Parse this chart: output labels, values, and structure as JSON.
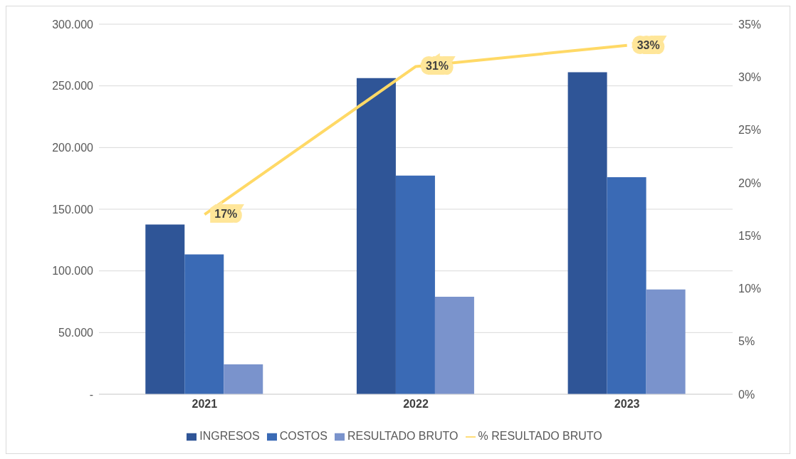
{
  "chart_data": {
    "type": "bar",
    "categories": [
      "2021",
      "2022",
      "2023"
    ],
    "series": [
      {
        "name": "INGRESOS",
        "color": "#2f5597",
        "values": [
          137600,
          256300,
          261000
        ]
      },
      {
        "name": "COSTOS",
        "color": "#3a6ab5",
        "values": [
          113400,
          177200,
          176000
        ]
      },
      {
        "name": "RESULTADO BRUTO",
        "color": "#7a93cc",
        "values": [
          24200,
          79100,
          85000
        ]
      },
      {
        "name": "% RESULTADO BRUTO",
        "type": "line",
        "axis": "y2",
        "color": "#ffd966",
        "values": [
          17,
          31,
          33
        ],
        "value_labels": [
          "17%",
          "31%",
          "33%"
        ]
      }
    ],
    "ylim": [
      0,
      300000
    ],
    "yticks": [
      {
        "value": 0,
        "label": "-"
      },
      {
        "value": 50000,
        "label": "50.000"
      },
      {
        "value": 100000,
        "label": "100.000"
      },
      {
        "value": 150000,
        "label": "150.000"
      },
      {
        "value": 200000,
        "label": "200.000"
      },
      {
        "value": 250000,
        "label": "250.000"
      },
      {
        "value": 300000,
        "label": "300.000"
      }
    ],
    "y2lim": [
      0,
      35
    ],
    "y2ticks": [
      {
        "value": 0,
        "label": "0%"
      },
      {
        "value": 5,
        "label": "5%"
      },
      {
        "value": 10,
        "label": "10%"
      },
      {
        "value": 15,
        "label": "15%"
      },
      {
        "value": 20,
        "label": "20%"
      },
      {
        "value": 25,
        "label": "25%"
      },
      {
        "value": 30,
        "label": "30%"
      },
      {
        "value": 35,
        "label": "35%"
      }
    ],
    "grid": "y",
    "legend": "bottom"
  }
}
